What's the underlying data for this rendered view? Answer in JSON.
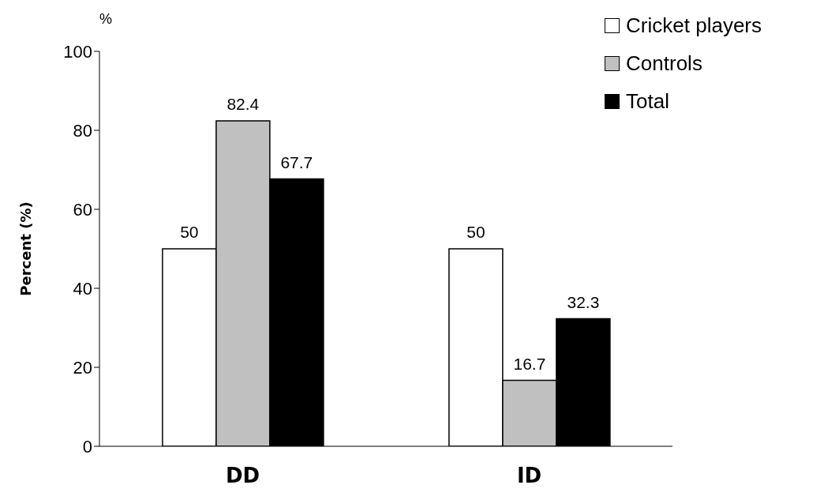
{
  "chart_data": {
    "type": "bar",
    "ylabel": "Percent (%)",
    "annotations": [
      "%"
    ],
    "categories": [
      "DD",
      "ID"
    ],
    "series": [
      {
        "name": "Cricket players",
        "color": "#ffffff",
        "values": [
          50,
          50
        ]
      },
      {
        "name": "Controls",
        "color": "#c0c0c0",
        "values": [
          82.4,
          16.7
        ]
      },
      {
        "name": "Total",
        "color": "#000000",
        "values": [
          67.7,
          32.3
        ]
      }
    ],
    "ylim": [
      0,
      100
    ],
    "yticks": [
      0,
      20,
      40,
      60,
      80,
      100
    ],
    "grid": false,
    "legend": "top right",
    "data_labels": true
  }
}
